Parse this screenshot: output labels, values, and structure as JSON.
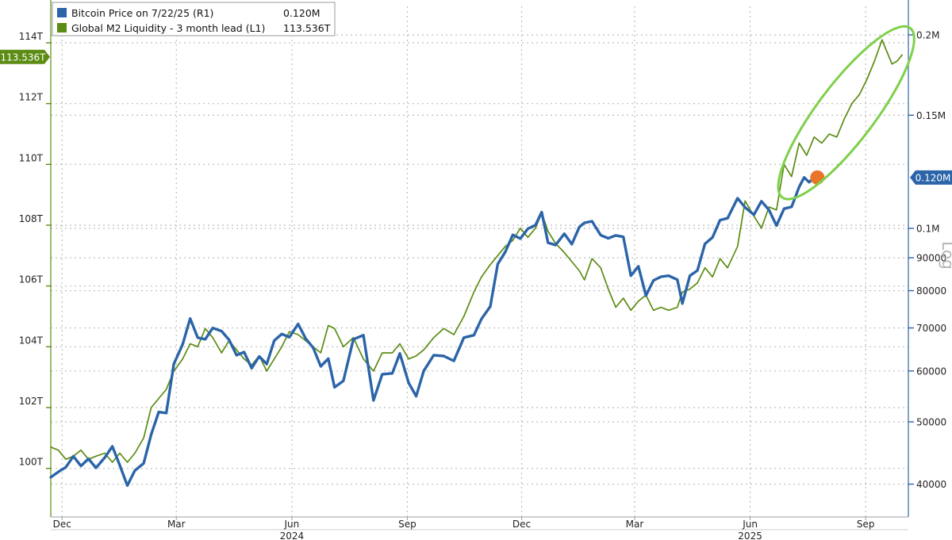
{
  "chart_data": {
    "type": "line",
    "legend": {
      "placement": "top-left",
      "entries": [
        {
          "swatch": "#2b64a8",
          "name": "Bitcoin Price on 7/22/25 (R1)",
          "value": "0.120M"
        },
        {
          "swatch": "#5b8c13",
          "name": "Global M2 Liquidity - 3 month lead (L1)",
          "value": "113.536T"
        }
      ]
    },
    "left_axis": {
      "unit": "T",
      "range": [
        98.4,
        115.2
      ],
      "ticks": [
        "100T",
        "102T",
        "104T",
        "106T",
        "108T",
        "110T",
        "112T",
        "114T"
      ],
      "tick_values": [
        100,
        102,
        104,
        106,
        108,
        110,
        112,
        114
      ],
      "last_value_label": "113.536T",
      "last_value": 113.536
    },
    "right_axis": {
      "scale": "log",
      "label": "Log",
      "ticks": [
        "40000",
        "50000",
        "60000",
        "70000",
        "80000",
        "90000",
        "0.1M",
        "0.15M",
        "0.2M"
      ],
      "tick_values": [
        40000,
        50000,
        60000,
        70000,
        80000,
        90000,
        100000,
        150000,
        200000
      ],
      "last_value_label": "0.120M",
      "last_value": 120000
    },
    "x_axis": {
      "range": [
        "2023-11-22",
        "2025-10-05"
      ],
      "month_ticks": [
        {
          "label": "Dec",
          "date": "2023-12-01"
        },
        {
          "label": "Mar",
          "date": "2024-03-01"
        },
        {
          "label": "Jun",
          "date": "2024-06-01"
        },
        {
          "label": "Sep",
          "date": "2024-09-01"
        },
        {
          "label": "Dec",
          "date": "2024-12-01"
        },
        {
          "label": "Mar",
          "date": "2025-03-01"
        },
        {
          "label": "Jun",
          "date": "2025-06-01"
        },
        {
          "label": "Sep",
          "date": "2025-09-01"
        }
      ],
      "year_labels": [
        {
          "label": "2024",
          "date": "2024-06-01"
        },
        {
          "label": "2025",
          "date": "2025-06-01"
        }
      ]
    },
    "grid": true,
    "series": [
      {
        "name": "Bitcoin Price on 7/22/25 (R1)",
        "axis": "right",
        "color": "#2b64a8",
        "points": [
          [
            "2023-11-22",
            41000
          ],
          [
            "2023-11-28",
            41800
          ],
          [
            "2023-12-04",
            42500
          ],
          [
            "2023-12-10",
            44200
          ],
          [
            "2023-12-16",
            42700
          ],
          [
            "2023-12-22",
            43800
          ],
          [
            "2023-12-28",
            42400
          ],
          [
            "2024-01-04",
            44000
          ],
          [
            "2024-01-10",
            45800
          ],
          [
            "2024-01-16",
            42800
          ],
          [
            "2024-01-22",
            39800
          ],
          [
            "2024-01-28",
            42000
          ],
          [
            "2024-02-04",
            43100
          ],
          [
            "2024-02-10",
            47800
          ],
          [
            "2024-02-16",
            51800
          ],
          [
            "2024-02-22",
            51600
          ],
          [
            "2024-02-28",
            61500
          ],
          [
            "2024-03-06",
            66000
          ],
          [
            "2024-03-12",
            72400
          ],
          [
            "2024-03-18",
            67600
          ],
          [
            "2024-03-24",
            67200
          ],
          [
            "2024-03-30",
            70000
          ],
          [
            "2024-04-06",
            69200
          ],
          [
            "2024-04-12",
            67100
          ],
          [
            "2024-04-18",
            63500
          ],
          [
            "2024-04-24",
            64200
          ],
          [
            "2024-04-30",
            60600
          ],
          [
            "2024-05-06",
            63200
          ],
          [
            "2024-05-12",
            61500
          ],
          [
            "2024-05-18",
            66900
          ],
          [
            "2024-05-24",
            68500
          ],
          [
            "2024-05-30",
            67700
          ],
          [
            "2024-06-06",
            71000
          ],
          [
            "2024-06-12",
            67400
          ],
          [
            "2024-06-18",
            65200
          ],
          [
            "2024-06-24",
            61000
          ],
          [
            "2024-06-30",
            62700
          ],
          [
            "2024-07-05",
            56600
          ],
          [
            "2024-07-12",
            57900
          ],
          [
            "2024-07-20",
            67200
          ],
          [
            "2024-07-28",
            68200
          ],
          [
            "2024-08-05",
            54000
          ],
          [
            "2024-08-12",
            59300
          ],
          [
            "2024-08-20",
            59500
          ],
          [
            "2024-08-26",
            63900
          ],
          [
            "2024-09-02",
            57500
          ],
          [
            "2024-09-08",
            54800
          ],
          [
            "2024-09-14",
            60000
          ],
          [
            "2024-09-22",
            63500
          ],
          [
            "2024-09-30",
            63300
          ],
          [
            "2024-10-08",
            62200
          ],
          [
            "2024-10-16",
            67600
          ],
          [
            "2024-10-24",
            68200
          ],
          [
            "2024-10-30",
            72300
          ],
          [
            "2024-11-06",
            75600
          ],
          [
            "2024-11-12",
            88000
          ],
          [
            "2024-11-18",
            91900
          ],
          [
            "2024-11-24",
            97700
          ],
          [
            "2024-11-30",
            96400
          ],
          [
            "2024-12-06",
            99900
          ],
          [
            "2024-12-12",
            101100
          ],
          [
            "2024-12-17",
            106000
          ],
          [
            "2024-12-22",
            95000
          ],
          [
            "2024-12-28",
            94200
          ],
          [
            "2025-01-04",
            98100
          ],
          [
            "2025-01-10",
            94500
          ],
          [
            "2025-01-16",
            100500
          ],
          [
            "2025-01-20",
            102000
          ],
          [
            "2025-01-26",
            102600
          ],
          [
            "2025-02-02",
            97600
          ],
          [
            "2025-02-08",
            96500
          ],
          [
            "2025-02-14",
            97500
          ],
          [
            "2025-02-20",
            97000
          ],
          [
            "2025-02-26",
            84400
          ],
          [
            "2025-03-04",
            87300
          ],
          [
            "2025-03-10",
            78600
          ],
          [
            "2025-03-16",
            83000
          ],
          [
            "2025-03-22",
            84100
          ],
          [
            "2025-03-28",
            84400
          ],
          [
            "2025-04-04",
            83200
          ],
          [
            "2025-04-08",
            76400
          ],
          [
            "2025-04-14",
            84400
          ],
          [
            "2025-04-20",
            86000
          ],
          [
            "2025-04-26",
            94600
          ],
          [
            "2025-05-02",
            96800
          ],
          [
            "2025-05-08",
            103000
          ],
          [
            "2025-05-14",
            103700
          ],
          [
            "2025-05-22",
            111400
          ],
          [
            "2025-05-28",
            107800
          ],
          [
            "2025-06-04",
            105000
          ],
          [
            "2025-06-10",
            110200
          ],
          [
            "2025-06-16",
            106800
          ],
          [
            "2025-06-22",
            101000
          ],
          [
            "2025-06-28",
            107300
          ],
          [
            "2025-07-04",
            108000
          ],
          [
            "2025-07-10",
            116000
          ],
          [
            "2025-07-14",
            120000
          ],
          [
            "2025-07-18",
            118000
          ],
          [
            "2025-07-22",
            120000
          ]
        ]
      },
      {
        "name": "Global M2 Liquidity - 3 month lead (L1)",
        "axis": "left",
        "color": "#5b8c13",
        "points": [
          [
            "2023-11-22",
            100.7
          ],
          [
            "2023-11-28",
            100.6
          ],
          [
            "2023-12-04",
            100.3
          ],
          [
            "2023-12-10",
            100.4
          ],
          [
            "2023-12-16",
            100.6
          ],
          [
            "2023-12-22",
            100.3
          ],
          [
            "2023-12-28",
            100.4
          ],
          [
            "2024-01-04",
            100.5
          ],
          [
            "2024-01-10",
            100.2
          ],
          [
            "2024-01-16",
            100.5
          ],
          [
            "2024-01-22",
            100.2
          ],
          [
            "2024-01-28",
            100.5
          ],
          [
            "2024-02-04",
            101.0
          ],
          [
            "2024-02-10",
            102.0
          ],
          [
            "2024-02-16",
            102.3
          ],
          [
            "2024-02-22",
            102.6
          ],
          [
            "2024-02-28",
            103.2
          ],
          [
            "2024-03-06",
            103.6
          ],
          [
            "2024-03-12",
            104.1
          ],
          [
            "2024-03-18",
            104.0
          ],
          [
            "2024-03-24",
            104.6
          ],
          [
            "2024-03-30",
            104.3
          ],
          [
            "2024-04-06",
            103.8
          ],
          [
            "2024-04-12",
            104.2
          ],
          [
            "2024-04-18",
            103.9
          ],
          [
            "2024-04-24",
            103.6
          ],
          [
            "2024-04-30",
            103.4
          ],
          [
            "2024-05-06",
            103.7
          ],
          [
            "2024-05-12",
            103.2
          ],
          [
            "2024-05-18",
            103.6
          ],
          [
            "2024-05-24",
            104.0
          ],
          [
            "2024-05-30",
            104.5
          ],
          [
            "2024-06-06",
            104.4
          ],
          [
            "2024-06-12",
            104.2
          ],
          [
            "2024-06-18",
            104.0
          ],
          [
            "2024-06-24",
            103.8
          ],
          [
            "2024-06-30",
            104.7
          ],
          [
            "2024-07-05",
            104.6
          ],
          [
            "2024-07-12",
            104.0
          ],
          [
            "2024-07-20",
            104.3
          ],
          [
            "2024-07-28",
            103.6
          ],
          [
            "2024-08-05",
            103.2
          ],
          [
            "2024-08-12",
            103.8
          ],
          [
            "2024-08-20",
            103.8
          ],
          [
            "2024-08-26",
            104.1
          ],
          [
            "2024-09-02",
            103.6
          ],
          [
            "2024-09-08",
            103.7
          ],
          [
            "2024-09-14",
            103.9
          ],
          [
            "2024-09-22",
            104.3
          ],
          [
            "2024-09-30",
            104.6
          ],
          [
            "2024-10-08",
            104.4
          ],
          [
            "2024-10-16",
            105.0
          ],
          [
            "2024-10-24",
            105.8
          ],
          [
            "2024-10-30",
            106.3
          ],
          [
            "2024-11-06",
            106.7
          ],
          [
            "2024-11-12",
            107.0
          ],
          [
            "2024-11-18",
            107.3
          ],
          [
            "2024-11-24",
            107.5
          ],
          [
            "2024-11-30",
            107.9
          ],
          [
            "2024-12-06",
            107.6
          ],
          [
            "2024-12-12",
            107.9
          ],
          [
            "2024-12-17",
            108.4
          ],
          [
            "2024-12-22",
            107.8
          ],
          [
            "2024-12-28",
            107.4
          ],
          [
            "2025-01-04",
            107.1
          ],
          [
            "2025-01-10",
            106.8
          ],
          [
            "2025-01-16",
            106.5
          ],
          [
            "2025-01-20",
            106.2
          ],
          [
            "2025-01-26",
            106.9
          ],
          [
            "2025-02-02",
            106.6
          ],
          [
            "2025-02-08",
            105.9
          ],
          [
            "2025-02-14",
            105.3
          ],
          [
            "2025-02-20",
            105.6
          ],
          [
            "2025-02-26",
            105.2
          ],
          [
            "2025-03-04",
            105.5
          ],
          [
            "2025-03-10",
            105.7
          ],
          [
            "2025-03-16",
            105.2
          ],
          [
            "2025-03-22",
            105.3
          ],
          [
            "2025-03-28",
            105.2
          ],
          [
            "2025-04-04",
            105.3
          ],
          [
            "2025-04-08",
            105.8
          ],
          [
            "2025-04-14",
            105.9
          ],
          [
            "2025-04-20",
            106.1
          ],
          [
            "2025-04-26",
            106.6
          ],
          [
            "2025-05-02",
            106.3
          ],
          [
            "2025-05-08",
            106.9
          ],
          [
            "2025-05-14",
            106.6
          ],
          [
            "2025-05-22",
            107.3
          ],
          [
            "2025-05-28",
            108.8
          ],
          [
            "2025-06-04",
            108.3
          ],
          [
            "2025-06-10",
            107.9
          ],
          [
            "2025-06-16",
            108.6
          ],
          [
            "2025-06-22",
            108.5
          ],
          [
            "2025-06-28",
            110.0
          ],
          [
            "2025-07-04",
            109.6
          ],
          [
            "2025-07-10",
            110.7
          ],
          [
            "2025-07-16",
            110.3
          ],
          [
            "2025-07-22",
            110.9
          ],
          [
            "2025-07-28",
            110.7
          ],
          [
            "2025-08-03",
            111.0
          ],
          [
            "2025-08-09",
            110.9
          ],
          [
            "2025-08-15",
            111.5
          ],
          [
            "2025-08-21",
            112.0
          ],
          [
            "2025-08-27",
            112.3
          ],
          [
            "2025-09-02",
            112.8
          ],
          [
            "2025-09-08",
            113.4
          ],
          [
            "2025-09-14",
            114.1
          ],
          [
            "2025-09-18",
            113.7
          ],
          [
            "2025-09-22",
            113.3
          ],
          [
            "2025-09-26",
            113.4
          ],
          [
            "2025-09-30",
            113.6
          ]
        ]
      }
    ],
    "annotations": [
      {
        "type": "marker",
        "series": 0,
        "date": "2025-07-22",
        "value": 120000,
        "color": "#e8752a"
      },
      {
        "type": "ellipse",
        "color": "#7fd04b",
        "x_range": [
          "2025-06-28",
          "2025-10-05"
        ],
        "left_range": [
          109.0,
          114.4
        ]
      }
    ]
  }
}
